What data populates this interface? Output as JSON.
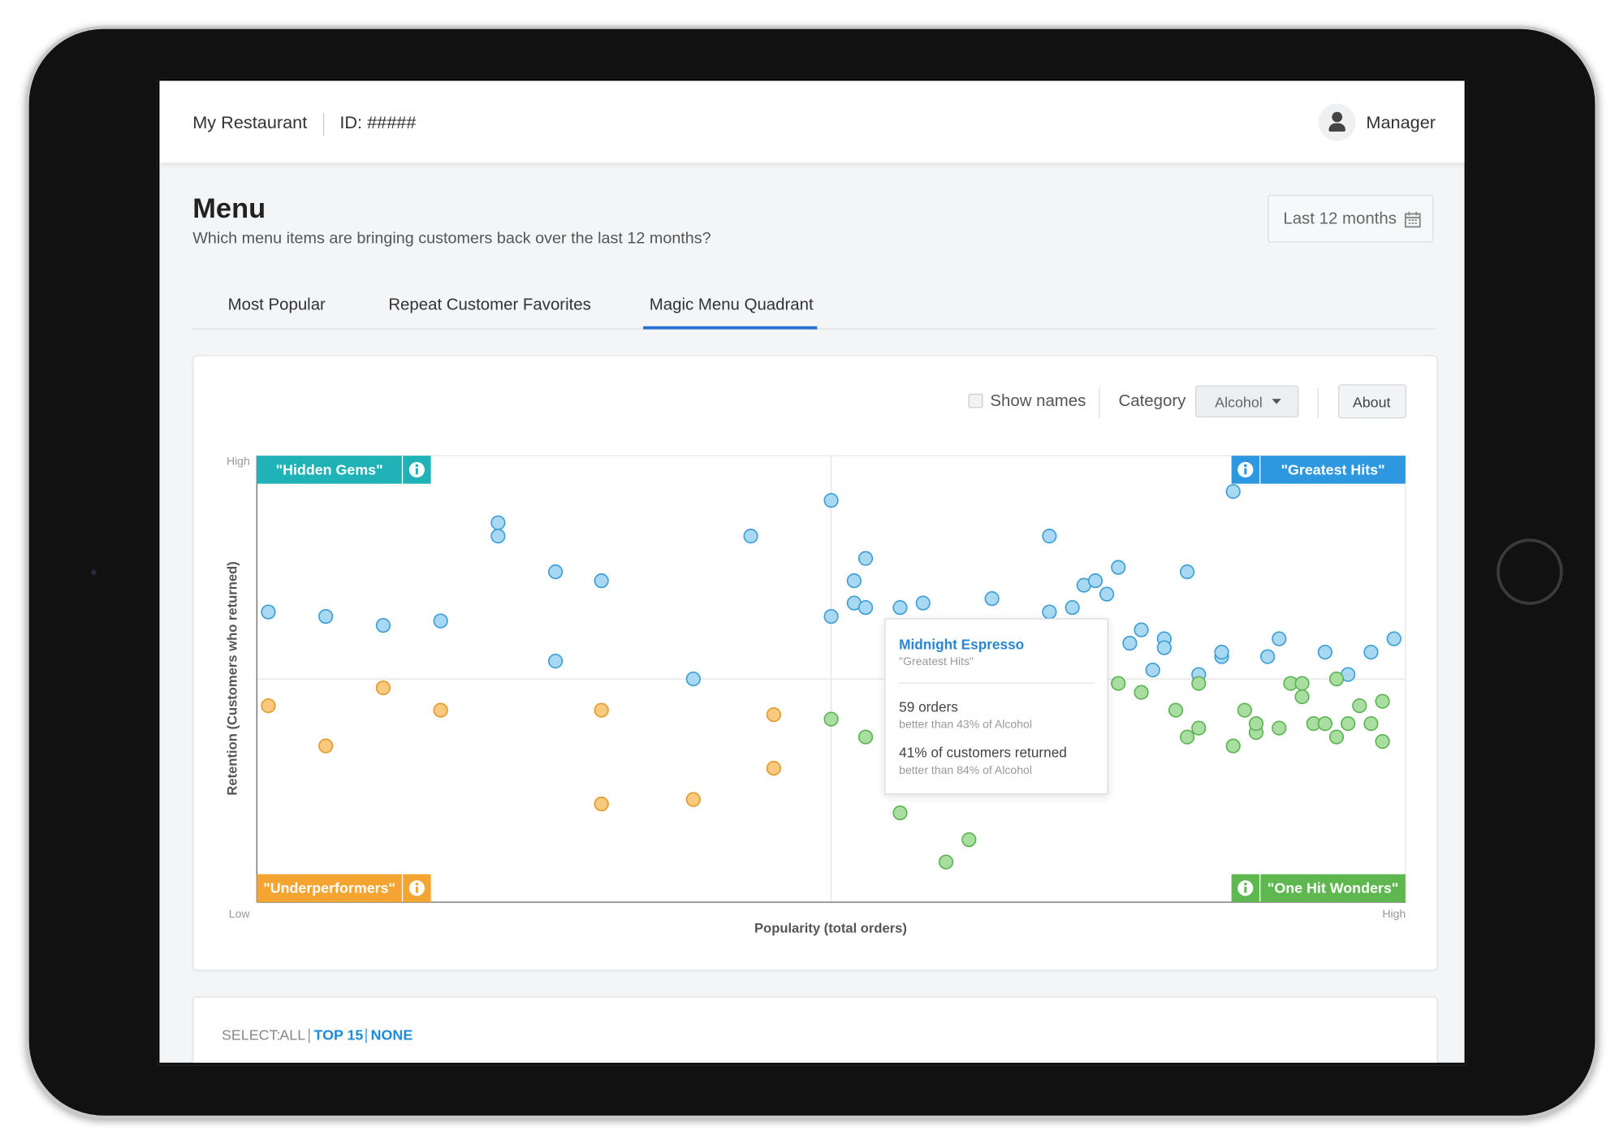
{
  "header": {
    "restaurant": "My Restaurant",
    "id": "ID: #####",
    "user": "Manager"
  },
  "page": {
    "title": "Menu",
    "subtitle": "Which menu items are bringing customers back over the last 12 months?",
    "date_range": "Last 12 months"
  },
  "tabs": [
    "Most Popular",
    "Repeat Customer Favorites",
    "Magic Menu Quadrant"
  ],
  "controls": {
    "show_names": "Show names",
    "category_label": "Category",
    "category_value": "Alcohol",
    "about": "About"
  },
  "chart_data": {
    "type": "scatter",
    "x_label": "Popularity (total orders)",
    "y_label": "Retention (Customers who returned)",
    "y_high_label": "High",
    "low_label": "Low",
    "x_high_label": "High",
    "xlim": [
      0,
      100
    ],
    "ylim": [
      0,
      100
    ],
    "series": [
      {
        "name": "\"Hidden Gems\"",
        "corner": "top-left",
        "label_color": "#1fb2b6",
        "color": "#a9d9f2",
        "stroke": "#3d9fd6",
        "x": [
          1,
          6,
          11,
          16,
          21,
          21,
          26,
          30,
          26,
          38,
          43
        ],
        "values": [
          65,
          64,
          62,
          63,
          85,
          82,
          74,
          72,
          54,
          50,
          82
        ]
      },
      {
        "name": "\"Greatest Hits\"",
        "corner": "top-right",
        "label_color": "#2d97df",
        "color": "#a9d9f2",
        "stroke": "#3d9fd6",
        "x": [
          50,
          50,
          52,
          53,
          52,
          53,
          56,
          58,
          64,
          69,
          69,
          71,
          72,
          73,
          74,
          75,
          76,
          77,
          78,
          79,
          79,
          81,
          82,
          84,
          84,
          85,
          88,
          89,
          93,
          95,
          97,
          99
        ],
        "values": [
          90,
          64,
          72,
          77,
          67,
          66,
          66,
          67,
          68,
          65,
          82,
          66,
          71,
          72,
          69,
          75,
          58,
          61,
          52,
          59,
          57,
          74,
          51,
          55,
          56,
          92,
          55,
          59,
          56,
          51,
          56,
          59
        ]
      },
      {
        "name": "\"Underperformers\"",
        "corner": "bottom-left",
        "label_color": "#f4a531",
        "color": "#f9ca7e",
        "stroke": "#e49a2c",
        "x": [
          1,
          6,
          11,
          16,
          30,
          30,
          38,
          45,
          45
        ],
        "values": [
          44,
          35,
          48,
          43,
          43,
          22,
          23,
          42,
          30
        ]
      },
      {
        "name": "\"One Hit Wonders\"",
        "corner": "bottom-right",
        "label_color": "#5fb84f",
        "color": "#a9dea1",
        "stroke": "#5db454",
        "x": [
          50,
          53,
          56,
          60,
          62,
          75,
          77,
          80,
          81,
          82,
          82,
          85,
          86,
          87,
          87,
          89,
          90,
          91,
          91,
          92,
          93,
          94,
          94,
          95,
          96,
          97,
          98,
          98
        ],
        "values": [
          41,
          37,
          20,
          9,
          14,
          49,
          47,
          43,
          37,
          39,
          49,
          35,
          43,
          38,
          40,
          39,
          49,
          49,
          46,
          40,
          40,
          50,
          37,
          40,
          44,
          40,
          45,
          36
        ]
      }
    ]
  },
  "tooltip": {
    "item": "Midnight Espresso",
    "quadrant": "\"Greatest Hits\"",
    "orders": "59 orders",
    "orders_note": "better than 43% of Alcohol",
    "retention": "41% of customers returned",
    "retention_note": "better than 84% of Alcohol"
  },
  "select": {
    "label": "SELECT:",
    "all": "ALL",
    "top": "TOP 15",
    "none": "NONE"
  }
}
